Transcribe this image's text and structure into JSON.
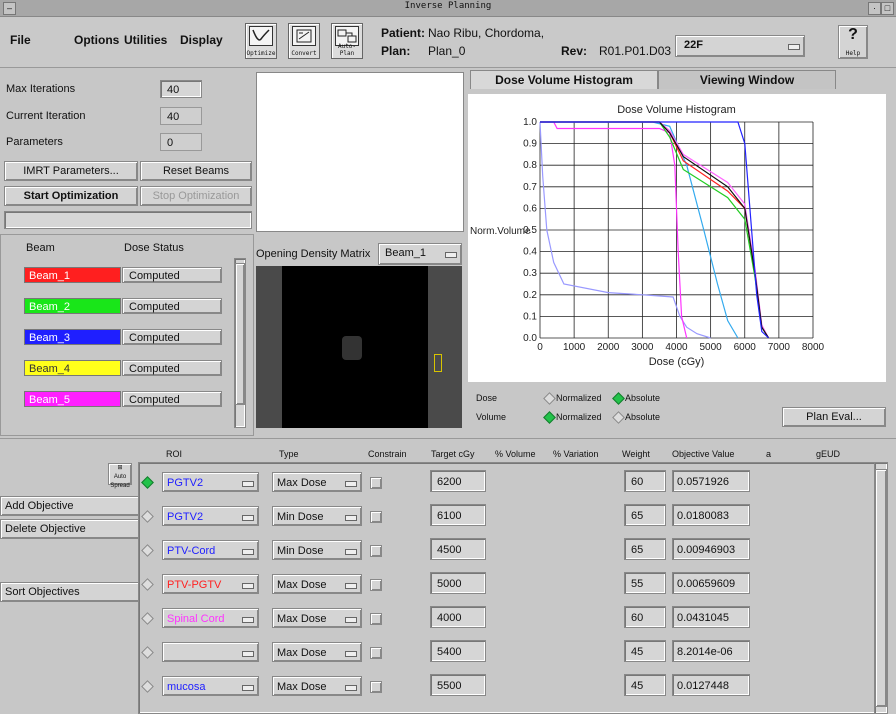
{
  "window": {
    "title": "Inverse Planning"
  },
  "menu": {
    "file": "File",
    "options": "Options",
    "utilities": "Utilities",
    "display": "Display"
  },
  "toolbar": {
    "optimize": "Optimize",
    "convert": "Convert",
    "autoplan": "Auto-Plan",
    "help": "Help"
  },
  "header": {
    "patient_label": "Patient:",
    "patient_value": "Nao Ribu, Chordoma,",
    "plan_label": "Plan:",
    "plan_value": "Plan_0",
    "rev_label": "Rev:",
    "rev_value": "R01.P01.D03",
    "selector": "22F"
  },
  "params": {
    "max_iter_label": "Max Iterations",
    "max_iter": "40",
    "cur_iter_label": "Current Iteration",
    "cur_iter": "40",
    "parameters_label": "Parameters",
    "parameters": "0",
    "imrt_button": "IMRT Parameters...",
    "reset_button": "Reset Beams",
    "start_button": "Start Optimization",
    "stop_button": "Stop Optimization"
  },
  "beams": {
    "col_beam": "Beam",
    "col_status": "Dose Status",
    "items": [
      {
        "name": "Beam_1",
        "status": "Computed",
        "color": "#ff1f1f"
      },
      {
        "name": "Beam_2",
        "status": "Computed",
        "color": "#19e619"
      },
      {
        "name": "Beam_3",
        "status": "Computed",
        "color": "#1f1fff"
      },
      {
        "name": "Beam_4",
        "status": "Computed",
        "color": "#ffff1a"
      },
      {
        "name": "Beam_5",
        "status": "Computed",
        "color": "#ff1fff"
      }
    ]
  },
  "odm": {
    "label": "Opening Density Matrix",
    "selected": "Beam_1"
  },
  "tabs": {
    "dvh": "Dose Volume Histogram",
    "viewing": "Viewing Window"
  },
  "dvh_controls": {
    "dose_label": "Dose",
    "volume_label": "Volume",
    "normalized": "Normalized",
    "absolute": "Absolute",
    "plan_eval": "Plan Eval..."
  },
  "chart_data": {
    "type": "line",
    "title": "Dose Volume Histogram",
    "xlabel": "Dose (cGy)",
    "ylabel": "Norm.Volume",
    "xlim": [
      0,
      8000
    ],
    "ylim": [
      0,
      1.0
    ],
    "x_ticks": [
      0,
      1000,
      2000,
      3000,
      4000,
      5000,
      6000,
      7000,
      8000
    ],
    "y_ticks": [
      0.0,
      0.1,
      0.2,
      0.3,
      0.4,
      0.5,
      0.6,
      0.7,
      0.8,
      0.9,
      1.0
    ],
    "grid": true,
    "series": [
      {
        "color": "#9999ff",
        "x": [
          0,
          80,
          200,
          400,
          700,
          2000,
          3000,
          3900,
          4100,
          4300,
          4600,
          5000
        ],
        "y": [
          1.0,
          0.75,
          0.5,
          0.35,
          0.25,
          0.21,
          0.2,
          0.19,
          0.1,
          0.05,
          0.02,
          0.0
        ]
      },
      {
        "color": "#ff33ff",
        "x": [
          0,
          400,
          500,
          700,
          3500,
          3800,
          3950,
          4050,
          4150,
          4300
        ],
        "y": [
          1.0,
          1.0,
          0.97,
          0.97,
          0.97,
          0.95,
          0.8,
          0.4,
          0.1,
          0.0
        ]
      },
      {
        "color": "#33aaee",
        "x": [
          0,
          3300,
          3800,
          4300,
          4800,
          5200,
          5500,
          5800
        ],
        "y": [
          1.0,
          1.0,
          0.98,
          0.8,
          0.5,
          0.25,
          0.08,
          0.0
        ]
      },
      {
        "color": "#ff2222",
        "x": [
          0,
          3500,
          3800,
          4200,
          5500,
          6000,
          6300,
          6500,
          6700
        ],
        "y": [
          1.0,
          1.0,
          0.95,
          0.82,
          0.68,
          0.6,
          0.3,
          0.05,
          0.0
        ]
      },
      {
        "color": "#22cc22",
        "x": [
          0,
          3500,
          3800,
          4200,
          5500,
          6000,
          6300,
          6500,
          6700
        ],
        "y": [
          1.0,
          1.0,
          0.93,
          0.78,
          0.65,
          0.55,
          0.28,
          0.05,
          0.0
        ]
      },
      {
        "color": "#ff66ff",
        "x": [
          0,
          3500,
          3800,
          4200,
          5500,
          6000,
          6300,
          6500,
          6700
        ],
        "y": [
          1.0,
          1.0,
          0.96,
          0.85,
          0.72,
          0.62,
          0.32,
          0.06,
          0.0
        ]
      },
      {
        "color": "#111111",
        "x": [
          0,
          3500,
          3800,
          4200,
          5500,
          6000,
          6300,
          6500,
          6700
        ],
        "y": [
          1.0,
          1.0,
          0.95,
          0.84,
          0.7,
          0.6,
          0.3,
          0.05,
          0.0
        ]
      },
      {
        "color": "#2222ff",
        "x": [
          0,
          5800,
          6000,
          6200,
          6350,
          6500,
          6700
        ],
        "y": [
          1.0,
          1.0,
          0.9,
          0.5,
          0.2,
          0.03,
          0.0
        ]
      }
    ]
  },
  "objectives": {
    "headers": {
      "roi": "ROI",
      "type": "Type",
      "constrain": "Constrain",
      "target": "Target cGy",
      "volume": "% Volume",
      "variation": "% Variation",
      "weight": "Weight",
      "objective": "Objective Value",
      "a": "a",
      "geud": "gEUD"
    },
    "add_button": "Add Objective",
    "delete_button": "Delete Objective",
    "sort_button": "Sort Objectives",
    "auto_spread": "Auto Spread",
    "rows": [
      {
        "roi": "PGTV2",
        "roi_color": "#2020ff",
        "type": "Max Dose",
        "target": "6200",
        "weight": "60",
        "objective": "0.0571926",
        "selected": true
      },
      {
        "roi": "PGTV2",
        "roi_color": "#2020ff",
        "type": "Min Dose",
        "target": "6100",
        "weight": "65",
        "objective": "0.0180083",
        "selected": false
      },
      {
        "roi": "PTV-Cord",
        "roi_color": "#2020ff",
        "type": "Min Dose",
        "target": "4500",
        "weight": "65",
        "objective": "0.00946903",
        "selected": false
      },
      {
        "roi": "PTV-PGTV",
        "roi_color": "#ff2020",
        "type": "Max Dose",
        "target": "5000",
        "weight": "55",
        "objective": "0.00659609",
        "selected": false
      },
      {
        "roi": "Spinal Cord",
        "roi_color": "#ff33ff",
        "type": "Max Dose",
        "target": "4000",
        "weight": "60",
        "objective": "0.0431045",
        "selected": false
      },
      {
        "roi": "",
        "roi_color": "#aaaaff",
        "type": "Max Dose",
        "target": "5400",
        "weight": "45",
        "objective": "8.2014e-06",
        "selected": false
      },
      {
        "roi": "mucosa",
        "roi_color": "#2020ff",
        "type": "Max Dose",
        "target": "5500",
        "weight": "45",
        "objective": "0.0127448",
        "selected": false
      }
    ]
  }
}
